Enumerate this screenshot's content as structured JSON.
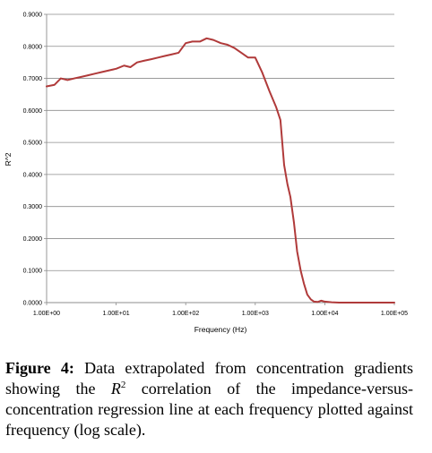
{
  "chart_data": {
    "type": "line",
    "xlabel": "Frequency (Hz)",
    "ylabel": "R^2",
    "xscale": "log",
    "xlim": [
      1,
      100000
    ],
    "ylim": [
      0,
      0.9
    ],
    "grid": "horizontal",
    "x_tick_labels": [
      "1.00E+00",
      "1.00E+01",
      "1.00E+02",
      "1.00E+03",
      "1.00E+04",
      "1.00E+05"
    ],
    "y_tick_labels": [
      "0.0000",
      "0.1000",
      "0.2000",
      "0.3000",
      "0.4000",
      "0.5000",
      "0.6000",
      "0.7000",
      "0.8000",
      "0.9000"
    ],
    "series_color": "#b03a3a",
    "series": [
      {
        "x": [
          1.0,
          1.3,
          1.6,
          2.0,
          2.5,
          3.2,
          4.0,
          5.0,
          6.3,
          7.9,
          10.0,
          13.0,
          16.0,
          20.0,
          25.0,
          32.0,
          40.0,
          50.0,
          63.0,
          79.0,
          100.0,
          125.0,
          160.0,
          200.0,
          250.0,
          320.0,
          400.0,
          500.0,
          630.0,
          790.0,
          1000.0,
          1250.0,
          1600.0,
          2000.0,
          2300.0,
          2600.0,
          2900.0,
          3200.0,
          3600.0,
          4000.0,
          4500.0,
          5000.0,
          5600.0,
          6300.0,
          7000.0,
          7900.0,
          8900.0,
          10000.0,
          12500.0,
          16000.0,
          20000.0,
          32000.0,
          50000.0,
          79000.0,
          100000.0
        ],
        "y": [
          0.675,
          0.68,
          0.7,
          0.695,
          0.7,
          0.705,
          0.71,
          0.715,
          0.72,
          0.725,
          0.73,
          0.74,
          0.735,
          0.75,
          0.755,
          0.76,
          0.765,
          0.77,
          0.775,
          0.78,
          0.81,
          0.815,
          0.815,
          0.825,
          0.82,
          0.81,
          0.805,
          0.795,
          0.78,
          0.765,
          0.765,
          0.72,
          0.66,
          0.61,
          0.57,
          0.43,
          0.37,
          0.33,
          0.25,
          0.16,
          0.1,
          0.06,
          0.025,
          0.01,
          0.003,
          0.002,
          0.006,
          0.003,
          0.001,
          0.0,
          0.0,
          0.0,
          0.0,
          0.0,
          0.0
        ]
      }
    ]
  },
  "caption": {
    "label": "Figure 4:",
    "text_before": "Data extrapolated from concentration gradients showing the ",
    "math_symbol": "R",
    "math_superscript": "2",
    "text_after": " correlation of the impedance-versus-concentration regression line at each frequency plotted against frequency (log scale)."
  }
}
